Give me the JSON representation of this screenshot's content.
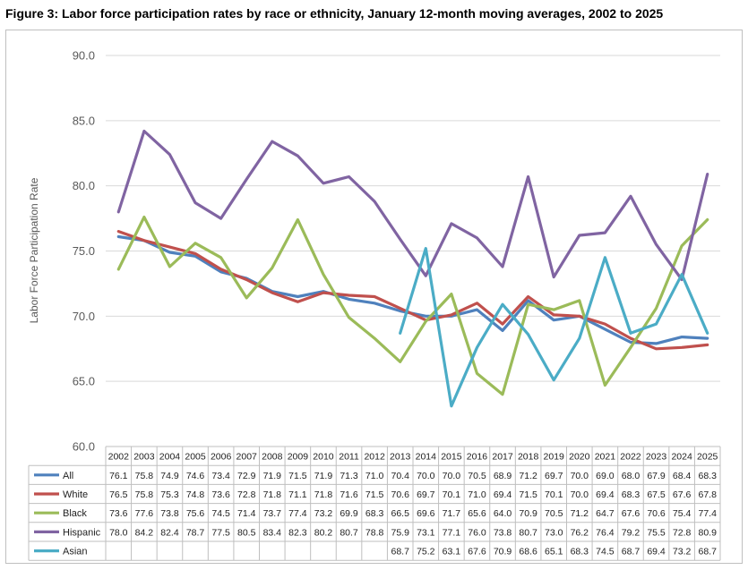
{
  "title": "Figure 3: Labor force participation rates by race or ethnicity, January 12-month moving averages, 2002 to 2025",
  "chart_data": {
    "type": "line",
    "title": "Figure 3: Labor force participation rates by race or ethnicity, January 12-month moving averages, 2002 to 2025",
    "xlabel": "",
    "ylabel": "Labor Force Participation Rate",
    "ylim": [
      60,
      90
    ],
    "yticks": [
      "60.0",
      "65.0",
      "70.0",
      "75.0",
      "80.0",
      "85.0",
      "90.0"
    ],
    "grid": "horizontal",
    "legend": "data table below chart",
    "categories": [
      "2002",
      "2003",
      "2004",
      "2005",
      "2006",
      "2007",
      "2008",
      "2009",
      "2010",
      "2011",
      "2012",
      "2013",
      "2014",
      "2015",
      "2016",
      "2017",
      "2018",
      "2019",
      "2020",
      "2021",
      "2022",
      "2023",
      "2024",
      "2025"
    ],
    "series": [
      {
        "name": "All",
        "color": "#4f81bd",
        "values": [
          76.1,
          75.8,
          74.9,
          74.6,
          73.4,
          72.9,
          71.9,
          71.5,
          71.9,
          71.3,
          71.0,
          70.4,
          70.0,
          70.0,
          70.5,
          68.9,
          71.2,
          69.7,
          70.0,
          69.0,
          68.0,
          67.9,
          68.4,
          68.3
        ]
      },
      {
        "name": "White",
        "color": "#c0504d",
        "values": [
          76.5,
          75.8,
          75.3,
          74.8,
          73.6,
          72.8,
          71.8,
          71.1,
          71.8,
          71.6,
          71.5,
          70.6,
          69.7,
          70.1,
          71.0,
          69.4,
          71.5,
          70.1,
          70.0,
          69.4,
          68.3,
          67.5,
          67.6,
          67.8
        ]
      },
      {
        "name": "Black",
        "color": "#9bbb59",
        "values": [
          73.6,
          77.6,
          73.8,
          75.6,
          74.5,
          71.4,
          73.7,
          77.4,
          73.2,
          69.9,
          68.3,
          66.5,
          69.6,
          71.7,
          65.6,
          64.0,
          70.9,
          70.5,
          71.2,
          64.7,
          67.6,
          70.6,
          75.4,
          77.4
        ]
      },
      {
        "name": "Hispanic",
        "color": "#8064a2",
        "values": [
          78.0,
          84.2,
          82.4,
          78.7,
          77.5,
          80.5,
          83.4,
          82.3,
          80.2,
          80.7,
          78.8,
          75.9,
          73.1,
          77.1,
          76.0,
          73.8,
          80.7,
          73.0,
          76.2,
          76.4,
          79.2,
          75.5,
          72.8,
          80.9
        ]
      },
      {
        "name": "Asian",
        "color": "#4bacc6",
        "values": [
          null,
          null,
          null,
          null,
          null,
          null,
          null,
          null,
          null,
          null,
          null,
          68.7,
          75.2,
          63.1,
          67.6,
          70.9,
          68.6,
          65.1,
          68.3,
          74.5,
          68.7,
          69.4,
          73.2,
          68.7
        ]
      }
    ]
  }
}
